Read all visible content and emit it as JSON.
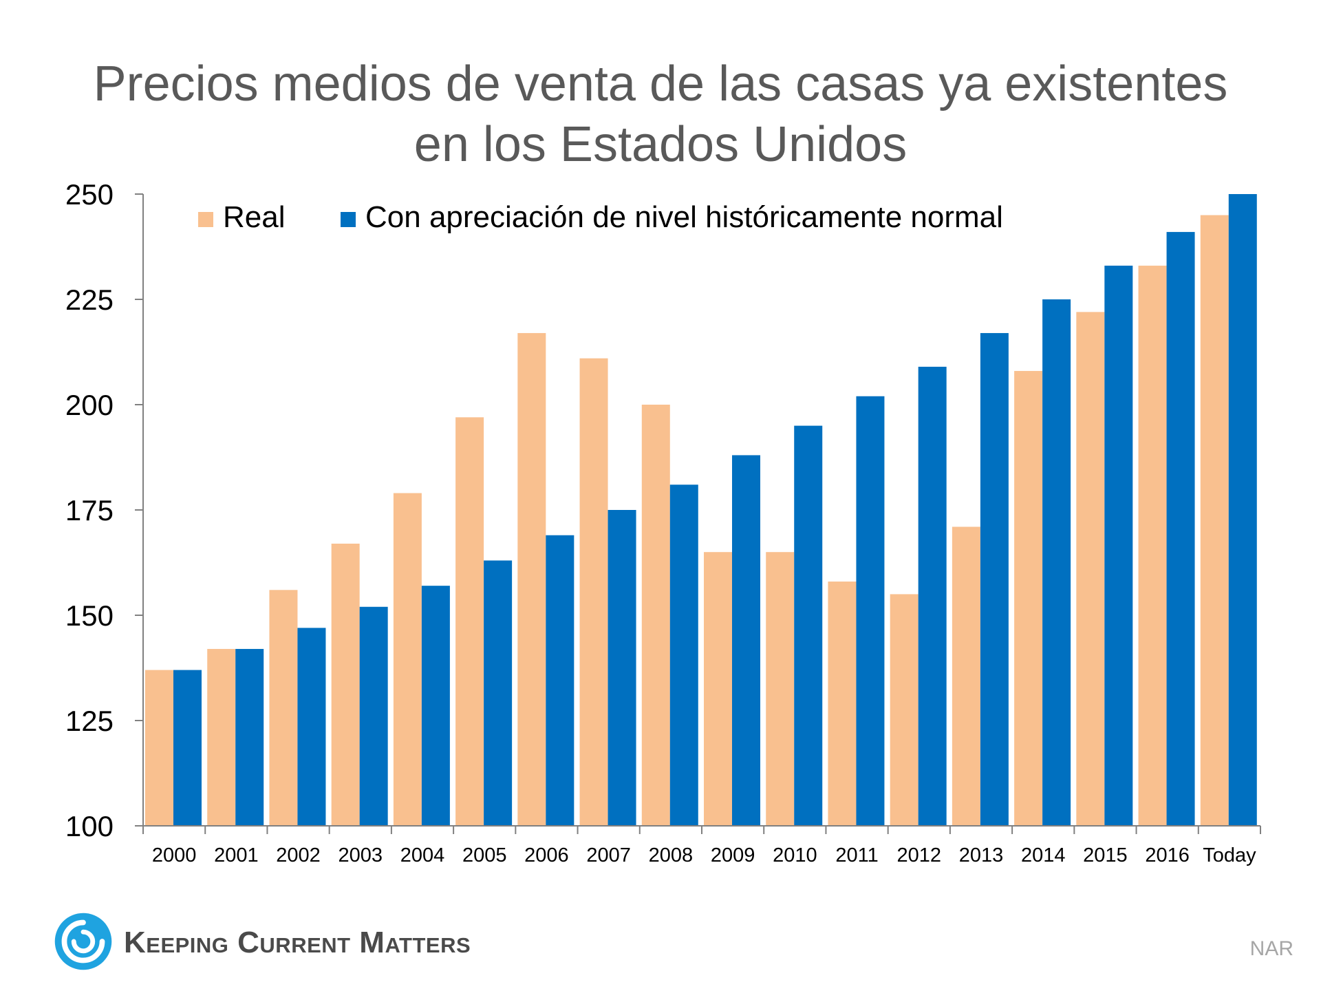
{
  "title_lines": [
    "Precios medios de venta de las casas ya existentes",
    "en los Estados Unidos"
  ],
  "brand": "Keeping Current Matters",
  "source": "NAR",
  "colors": {
    "real": "#F9C08F",
    "normal": "#0070C0",
    "text": "#000000",
    "title": "#595959",
    "axis": "#808080"
  },
  "chart_data": {
    "type": "bar",
    "title": "Precios medios de venta de las casas ya existentes en los Estados Unidos",
    "categories": [
      "2000",
      "2001",
      "2002",
      "2003",
      "2004",
      "2005",
      "2006",
      "2007",
      "2008",
      "2009",
      "2010",
      "2011",
      "2012",
      "2013",
      "2014",
      "2015",
      "2016",
      "Today"
    ],
    "series": [
      {
        "name": "Real",
        "color": "#F9C08F",
        "values": [
          137,
          142,
          156,
          167,
          179,
          197,
          217,
          211,
          200,
          165,
          165,
          158,
          155,
          171,
          208,
          222,
          233,
          245
        ]
      },
      {
        "name": "Con apreciación de nivel históricamente normal",
        "color": "#0070C0",
        "values": [
          137,
          142,
          147,
          152,
          157,
          163,
          169,
          175,
          181,
          188,
          195,
          202,
          209,
          217,
          225,
          233,
          241,
          250
        ]
      }
    ],
    "yticks": [
      "100",
      "125",
      "150",
      "175",
      "200",
      "225",
      "250"
    ],
    "ylim": [
      100,
      250
    ],
    "grid": false,
    "legend_position": "top"
  }
}
